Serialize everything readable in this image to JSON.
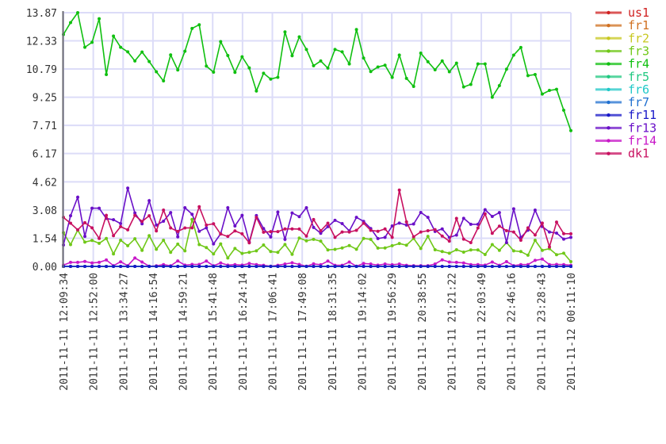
{
  "chart_data": {
    "type": "line",
    "title": "",
    "xlabel": "",
    "ylabel": "",
    "ylim": [
      0,
      13.87
    ],
    "y_ticks": [
      "0.00",
      "1.54",
      "3.08",
      "4.62",
      "6.17",
      "7.71",
      "9.25",
      "10.79",
      "12.33",
      "13.87"
    ],
    "x_ticks": [
      "2011-11-11 12:09:34",
      "2011-11-11 12:52:00",
      "2011-11-11 13:34:27",
      "2011-11-11 14:16:54",
      "2011-11-11 14:59:21",
      "2011-11-11 15:41:48",
      "2011-11-11 16:24:14",
      "2011-11-11 17:06:41",
      "2011-11-11 17:49:08",
      "2011-11-11 18:31:35",
      "2011-11-11 19:14:02",
      "2011-11-11 19:56:29",
      "2011-11-11 20:38:55",
      "2011-11-11 21:21:22",
      "2011-11-11 22:03:49",
      "2011-11-11 22:46:16",
      "2011-11-11 23:28:43",
      "2011-11-12 00:11:10"
    ],
    "grid": true,
    "legend_position": "right",
    "series": [
      {
        "name": "us1",
        "color": "#d02020",
        "values": [
          0,
          0,
          0,
          0,
          0,
          0,
          0,
          0,
          0,
          0,
          0,
          0,
          0,
          0,
          0,
          0,
          0,
          0,
          0,
          0,
          0,
          0,
          0,
          0,
          0,
          0,
          0,
          0,
          0,
          0,
          0,
          0,
          0,
          0,
          0,
          0,
          0,
          0,
          0,
          0,
          0,
          0,
          0,
          0,
          0,
          0,
          0,
          0,
          0,
          0,
          0,
          0,
          0,
          0,
          0,
          0,
          0,
          0,
          0,
          0,
          0,
          0,
          0,
          0,
          0,
          0,
          0,
          0,
          0,
          0,
          0,
          0
        ]
      },
      {
        "name": "fr1",
        "color": "#d07020",
        "values": [
          0,
          0,
          0,
          0,
          0,
          0,
          0,
          0,
          0,
          0,
          0,
          0,
          0,
          0,
          0,
          0,
          0,
          0,
          0,
          0,
          0,
          0,
          0,
          0,
          0,
          0,
          0,
          0,
          0,
          0,
          0,
          0,
          0,
          0,
          0,
          0,
          0,
          0,
          0,
          0,
          0,
          0,
          0,
          0,
          0,
          0,
          0,
          0,
          0,
          0,
          0,
          0,
          0,
          0,
          0,
          0,
          0,
          0,
          0,
          0,
          0,
          0,
          0,
          0,
          0,
          0,
          0,
          0,
          0,
          0,
          0,
          0
        ]
      },
      {
        "name": "fr2",
        "color": "#c8c820",
        "values": [
          0,
          0,
          0,
          0,
          0,
          0,
          0,
          0,
          0,
          0,
          0,
          0,
          0,
          0,
          0,
          0,
          0,
          0,
          0,
          0,
          0,
          0,
          0,
          0,
          0,
          0,
          0,
          0,
          0,
          0,
          0,
          0,
          0,
          0,
          0,
          0,
          0,
          0,
          0,
          0,
          0,
          0,
          0,
          0,
          0,
          0,
          0,
          0,
          0,
          0,
          0,
          0,
          0,
          0,
          0,
          0,
          0,
          0,
          0,
          0,
          0,
          0,
          0,
          0,
          0,
          0,
          0,
          0,
          0,
          0,
          0,
          0
        ]
      },
      {
        "name": "fr3",
        "color": "#70c818",
        "values": [
          1.84,
          1.19,
          1.98,
          1.33,
          1.42,
          1.26,
          1.53,
          0.68,
          1.43,
          1.13,
          1.51,
          0.88,
          1.68,
          0.94,
          1.43,
          0.77,
          1.22,
          0.85,
          2.57,
          1.19,
          1.03,
          0.68,
          1.23,
          0.46,
          0.98,
          0.71,
          0.77,
          0.85,
          1.17,
          0.81,
          0.77,
          1.2,
          0.66,
          1.55,
          1.4,
          1.48,
          1.38,
          0.9,
          0.93,
          1.01,
          1.14,
          0.94,
          1.53,
          1.48,
          1.0,
          1.01,
          1.13,
          1.25,
          1.16,
          1.53,
          0.98,
          1.64,
          0.91,
          0.81,
          0.72,
          0.91,
          0.78,
          0.9,
          0.9,
          0.65,
          1.19,
          0.88,
          1.3,
          0.85,
          0.81,
          0.61,
          1.43,
          0.88,
          0.97,
          0.64,
          0.72,
          0.26
        ]
      },
      {
        "name": "fr4",
        "color": "#10c010",
        "values": [
          12.68,
          13.33,
          13.87,
          11.98,
          12.25,
          13.54,
          10.49,
          12.59,
          11.98,
          11.73,
          11.23,
          11.72,
          11.2,
          10.64,
          10.14,
          11.56,
          10.74,
          11.76,
          13.01,
          13.21,
          10.95,
          10.62,
          12.29,
          11.53,
          10.61,
          11.46,
          10.85,
          9.59,
          10.56,
          10.24,
          10.34,
          12.82,
          11.52,
          12.55,
          11.86,
          10.97,
          11.23,
          10.84,
          11.86,
          11.73,
          11.07,
          12.95,
          11.39,
          10.65,
          10.9,
          11.0,
          10.33,
          11.55,
          10.28,
          9.84,
          11.66,
          11.19,
          10.75,
          11.23,
          10.64,
          11.11,
          9.81,
          9.95,
          11.07,
          11.07,
          9.25,
          9.88,
          10.78,
          11.55,
          11.97,
          10.43,
          10.49,
          9.42,
          9.62,
          9.68,
          8.54,
          7.42
        ]
      },
      {
        "name": "fr5",
        "color": "#20c880",
        "values": [
          0,
          0,
          0,
          0,
          0,
          0,
          0,
          0,
          0,
          0,
          0,
          0,
          0,
          0,
          0,
          0,
          0,
          0,
          0,
          0,
          0,
          0,
          0,
          0,
          0,
          0,
          0,
          0,
          0,
          0,
          0,
          0,
          0,
          0,
          0,
          0,
          0,
          0,
          0,
          0,
          0,
          0,
          0,
          0,
          0,
          0,
          0,
          0,
          0,
          0,
          0,
          0,
          0,
          0,
          0,
          0,
          0,
          0,
          0,
          0,
          0,
          0,
          0,
          0,
          0,
          0,
          0,
          0,
          0,
          0,
          0,
          0
        ]
      },
      {
        "name": "fr6",
        "color": "#20c8c8",
        "values": [
          0,
          0,
          0,
          0,
          0,
          0,
          0,
          0,
          0,
          0,
          0,
          0,
          0,
          0,
          0,
          0,
          0,
          0,
          0,
          0,
          0,
          0,
          0,
          0,
          0,
          0,
          0,
          0,
          0,
          0,
          0,
          0,
          0,
          0,
          0,
          0,
          0,
          0,
          0,
          0,
          0,
          0,
          0,
          0,
          0,
          0,
          0,
          0,
          0,
          0,
          0,
          0,
          0,
          0,
          0,
          0,
          0,
          0,
          0,
          0,
          0,
          0,
          0,
          0,
          0,
          0,
          0,
          0,
          0,
          0,
          0,
          0
        ]
      },
      {
        "name": "fr7",
        "color": "#2070d0",
        "values": [
          0,
          0,
          0,
          0,
          0,
          0,
          0,
          0,
          0,
          0,
          0,
          0,
          0,
          0,
          0,
          0,
          0,
          0,
          0,
          0,
          0,
          0,
          0,
          0,
          0,
          0,
          0,
          0,
          0,
          0,
          0,
          0,
          0,
          0,
          0,
          0,
          0,
          0,
          0,
          0,
          0,
          0,
          0,
          0,
          0,
          0,
          0,
          0,
          0,
          0,
          0,
          0,
          0,
          0,
          0,
          0,
          0,
          0,
          0,
          0,
          0,
          0,
          0,
          0,
          0,
          0,
          0,
          0,
          0,
          0,
          0,
          0
        ]
      },
      {
        "name": "fr11",
        "color": "#1818c8",
        "values": [
          0,
          0,
          0,
          0,
          0,
          0,
          0,
          0,
          0,
          0,
          0,
          0,
          0,
          0,
          0,
          0,
          0,
          0,
          0,
          0,
          0,
          0,
          0,
          0,
          0,
          0,
          0,
          0,
          0,
          0,
          0,
          0,
          0,
          0,
          0,
          0,
          0,
          0,
          0,
          0,
          0,
          0,
          0,
          0,
          0,
          0,
          0,
          0,
          0,
          0,
          0,
          0,
          0,
          0,
          0,
          0,
          0,
          0,
          0,
          0,
          0,
          0,
          0,
          0,
          0,
          0,
          0,
          0,
          0,
          0,
          0,
          0
        ]
      },
      {
        "name": "fr13",
        "color": "#6a10c8",
        "values": [
          1.17,
          2.77,
          3.78,
          1.64,
          3.18,
          3.18,
          2.62,
          2.55,
          2.34,
          4.28,
          2.92,
          2.33,
          3.59,
          2.26,
          2.47,
          2.94,
          1.62,
          3.21,
          2.85,
          1.92,
          2.11,
          1.23,
          1.78,
          3.21,
          2.21,
          2.79,
          1.33,
          2.78,
          2.07,
          1.61,
          2.97,
          1.48,
          2.92,
          2.72,
          3.21,
          2.13,
          1.81,
          2.17,
          2.52,
          2.34,
          1.94,
          2.68,
          2.46,
          2.07,
          1.52,
          1.59,
          2.21,
          2.37,
          2.26,
          2.32,
          2.95,
          2.68,
          1.91,
          2.05,
          1.58,
          1.71,
          2.63,
          2.3,
          2.3,
          3.1,
          2.73,
          2.94,
          1.3,
          3.15,
          1.59,
          1.98,
          3.08,
          2.18,
          1.88,
          1.82,
          1.49,
          1.59
        ]
      },
      {
        "name": "fr14",
        "color": "#c818c8",
        "values": [
          0.07,
          0.22,
          0.22,
          0.27,
          0.19,
          0.22,
          0.35,
          0.04,
          0.25,
          0.04,
          0.46,
          0.24,
          0.01,
          0.03,
          0.1,
          0.03,
          0.3,
          0.07,
          0.11,
          0.11,
          0.29,
          0.03,
          0.19,
          0.07,
          0.1,
          0.07,
          0.16,
          0.1,
          0.06,
          0.01,
          0.06,
          0.13,
          0.2,
          0.11,
          0.01,
          0.14,
          0.09,
          0.29,
          0.06,
          0.06,
          0.24,
          0.01,
          0.16,
          0.13,
          0.07,
          0.13,
          0.09,
          0.13,
          0.06,
          0.04,
          0.04,
          0.04,
          0.13,
          0.36,
          0.24,
          0.22,
          0.19,
          0.1,
          0.1,
          0.07,
          0.24,
          0.06,
          0.26,
          0.04,
          0.1,
          0.1,
          0.33,
          0.4,
          0.1,
          0.11,
          0.1,
          0.06
        ]
      },
      {
        "name": "dk1",
        "color": "#c81060",
        "values": [
          2.68,
          2.36,
          2.0,
          2.39,
          2.11,
          1.53,
          2.79,
          1.68,
          2.17,
          2.0,
          2.79,
          2.46,
          2.77,
          1.94,
          3.08,
          2.1,
          1.91,
          2.1,
          2.11,
          3.26,
          2.26,
          2.33,
          1.77,
          1.64,
          1.94,
          1.78,
          1.29,
          2.68,
          1.87,
          1.9,
          1.9,
          2.05,
          2.05,
          2.04,
          1.66,
          2.56,
          1.95,
          2.36,
          1.59,
          1.88,
          1.88,
          1.97,
          2.36,
          1.97,
          1.92,
          2.05,
          1.59,
          4.17,
          2.43,
          1.62,
          1.88,
          1.95,
          2.01,
          1.66,
          1.38,
          2.62,
          1.49,
          1.3,
          2.1,
          2.87,
          1.81,
          2.2,
          1.95,
          1.88,
          1.43,
          2.11,
          1.72,
          2.37,
          1.07,
          2.42,
          1.79,
          1.78
        ]
      }
    ]
  }
}
